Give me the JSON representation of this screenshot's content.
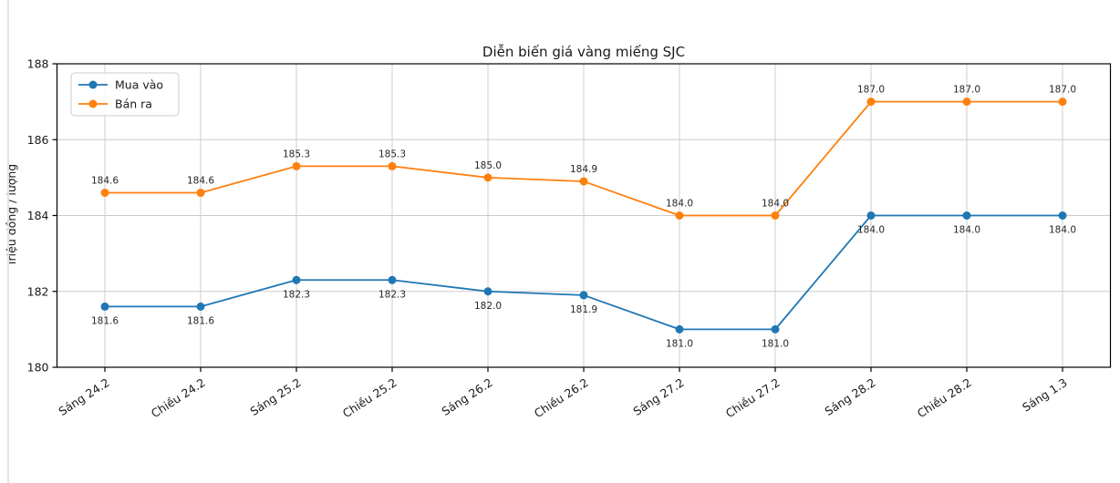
{
  "page": {
    "background_color": "#ffffff",
    "edge_divider_color": "#e4e4e4"
  },
  "chart_data": {
    "type": "line",
    "title": "Diễn biến giá vàng miếng SJC",
    "xlabel": "",
    "ylabel": "Triệu đồng / lượng",
    "categories": [
      "Sáng 24.2",
      "Chiều 24.2",
      "Sáng 25.2",
      "Chiều 25.2",
      "Sáng 26.2",
      "Chiều 26.2",
      "Sáng 27.2",
      "Chiều 27.2",
      "Sáng 28.2",
      "Chiều 28.2",
      "Sáng 1.3"
    ],
    "series": [
      {
        "name": "Mua vào",
        "color": "#1f77b4",
        "values": [
          181.6,
          181.6,
          182.3,
          182.3,
          182.0,
          181.9,
          181.0,
          181.0,
          184.0,
          184.0,
          184.0
        ],
        "value_label_position": "below"
      },
      {
        "name": "Bán ra",
        "color": "#ff7f0e",
        "values": [
          184.6,
          184.6,
          185.3,
          185.3,
          185.0,
          184.9,
          184.0,
          184.0,
          187.0,
          187.0,
          187.0
        ],
        "value_label_position": "above"
      }
    ],
    "ylim": [
      180,
      188
    ],
    "yticks": [
      180,
      182,
      184,
      186,
      188
    ],
    "grid": true,
    "grid_color": "#cccccc",
    "spine_color": "#000000",
    "marker": "circle",
    "legend_position": "upper left",
    "value_label_format": "{:.1f}",
    "x_tick_rotation_deg": 33
  }
}
